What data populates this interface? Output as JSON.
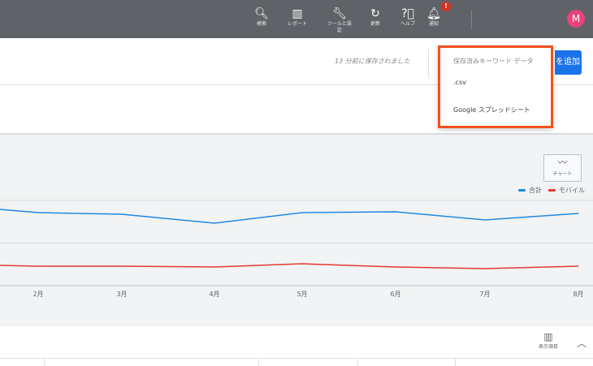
{
  "topbar": {
    "items": [
      {
        "icon": "search-icon",
        "glyph": "🔍︎",
        "label": "検索"
      },
      {
        "icon": "report-icon",
        "glyph": "▥",
        "label": "レポート"
      },
      {
        "icon": "wrench-icon",
        "glyph": "🔧︎",
        "label": "ツールと設定"
      },
      {
        "icon": "refresh-icon",
        "glyph": "↻",
        "label": "更新"
      },
      {
        "icon": "help-icon",
        "glyph": "?⃝",
        "label": "ヘルプ"
      },
      {
        "icon": "bell-icon",
        "glyph": "🔔︎",
        "label": "通知"
      }
    ],
    "notification_badge": "!",
    "avatar": "M"
  },
  "header": {
    "saved_status": "13 分前に保存されました",
    "add_button": "を追加"
  },
  "dropdown": {
    "heading": "保存済みキーワード データ",
    "items": [
      ".csv",
      "Google スプレッドシート"
    ]
  },
  "chart_toggle": {
    "icon": "line-chart-icon",
    "label": "チャート"
  },
  "chart_data": {
    "type": "line",
    "categories": [
      "",
      "2月",
      "3月",
      "4月",
      "5月",
      "6月",
      "7月",
      "8月"
    ],
    "series": [
      {
        "name": "合計",
        "color": "#1e88e5",
        "values": [
          94,
          90,
          88,
          77,
          90,
          91,
          81,
          89
        ]
      },
      {
        "name": "モバイル",
        "color": "#e53935",
        "values": [
          25,
          24,
          24,
          23,
          27,
          23,
          21,
          24
        ]
      }
    ],
    "ylim": [
      0,
      105
    ],
    "grid": true,
    "legend": "top-right"
  },
  "table": {
    "columns_button": "表示項目",
    "collapse_icon": "chevron-up-icon"
  }
}
